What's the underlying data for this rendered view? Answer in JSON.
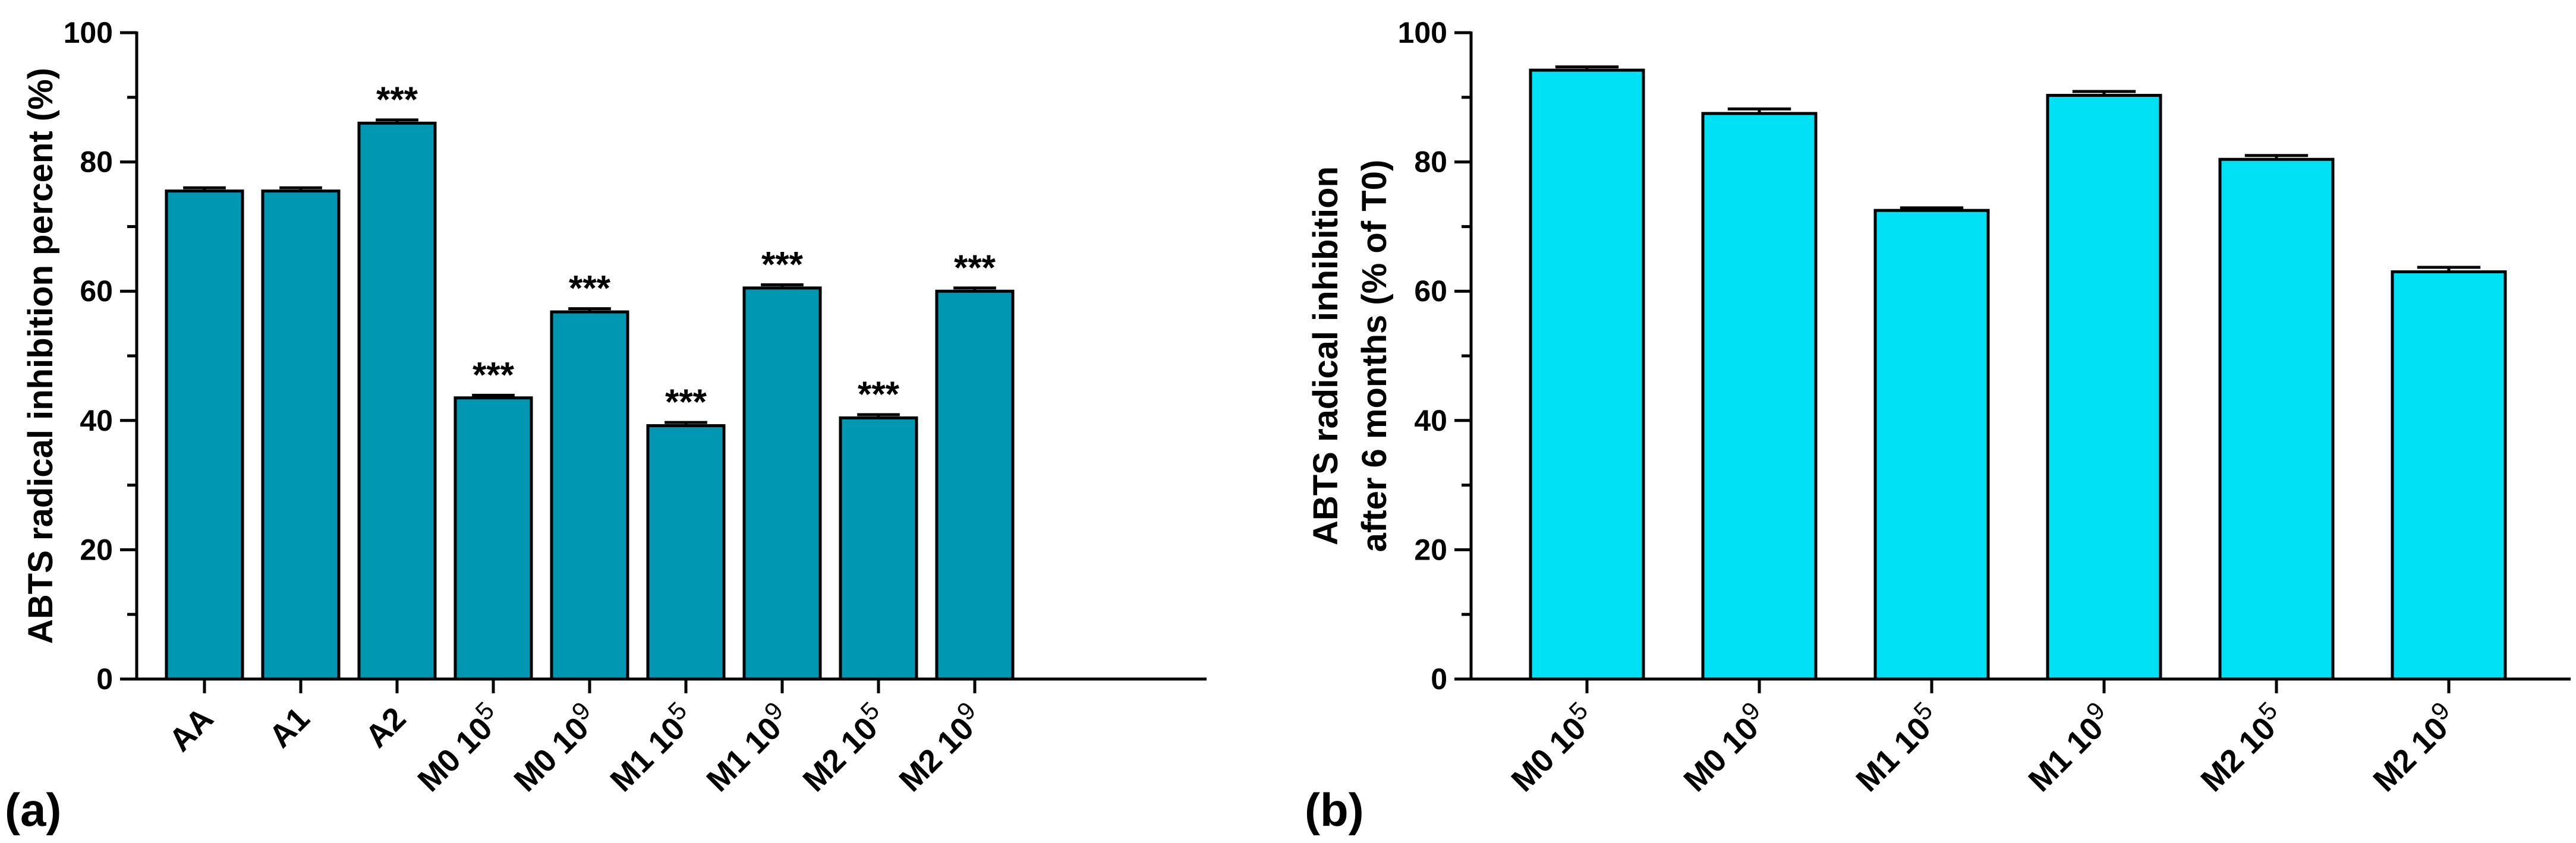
{
  "chart_data": [
    {
      "type": "bar",
      "panel": "(a)",
      "ylabel": "ABTS radical inhibition percent (%)",
      "ylabel_lines": [
        "ABTS radical inhibition percent (%)"
      ],
      "xlabel": "",
      "ylim": [
        0,
        100
      ],
      "yticks": [
        "0",
        "20",
        "40",
        "60",
        "80",
        "100"
      ],
      "bar_color": "#0097B2",
      "categories": [
        {
          "base": "AA",
          "exp": ""
        },
        {
          "base": "A1",
          "exp": ""
        },
        {
          "base": "A2",
          "exp": ""
        },
        {
          "base": "M0 10",
          "exp": "5"
        },
        {
          "base": "M0 10",
          "exp": "9"
        },
        {
          "base": "M1 10",
          "exp": "5"
        },
        {
          "base": "M1 10",
          "exp": "9"
        },
        {
          "base": "M2 10",
          "exp": "5"
        },
        {
          "base": "M2 10",
          "exp": "9"
        }
      ],
      "values": [
        75.5,
        75.5,
        86.0,
        43.5,
        56.8,
        39.2,
        60.5,
        40.4,
        60.0
      ],
      "errors": [
        0.5,
        0.5,
        0.5,
        0.4,
        0.5,
        0.5,
        0.5,
        0.5,
        0.5
      ],
      "annotations": [
        "",
        "",
        "***",
        "***",
        "***",
        "***",
        "***",
        "***",
        "***"
      ]
    },
    {
      "type": "bar",
      "panel": "(b)",
      "ylabel": "ABTS radical inhibition after 6 months (% of T0)",
      "ylabel_lines": [
        "ABTS radical inhibition",
        "after 6 months (% of T0)"
      ],
      "xlabel": "",
      "ylim": [
        0,
        100
      ],
      "yticks": [
        "0",
        "20",
        "40",
        "60",
        "80",
        "100"
      ],
      "bar_color": "#00E1F5",
      "categories": [
        {
          "base": "M0 10",
          "exp": "5"
        },
        {
          "base": "M0 10",
          "exp": "9"
        },
        {
          "base": "M1 10",
          "exp": "5"
        },
        {
          "base": "M1 10",
          "exp": "9"
        },
        {
          "base": "M2 10",
          "exp": "5"
        },
        {
          "base": "M2 10",
          "exp": "9"
        }
      ],
      "values": [
        94.2,
        87.5,
        72.5,
        90.3,
        80.4,
        63.0
      ],
      "errors": [
        0.5,
        0.7,
        0.4,
        0.6,
        0.6,
        0.7
      ],
      "annotations": [
        "",
        "",
        "",
        "",
        "",
        ""
      ]
    }
  ]
}
